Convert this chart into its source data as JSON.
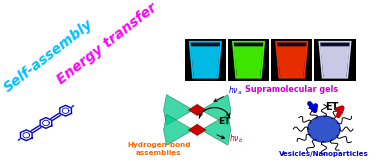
{
  "bg_color": "#ffffff",
  "self_assembly_text": "Self-assembly",
  "self_assembly_color": "#00BFFF",
  "energy_transfer_text": "Energy transfer",
  "energy_transfer_color": "#FF00FF",
  "supramolecular_text": "Supramolecular gels",
  "supramolecular_color": "#CC00CC",
  "hydrogen_bond_text": "Hydrogen-bond\nassemblies",
  "hydrogen_bond_color": "#FF6600",
  "vesicles_text": "Vesicles/Nanoparticles",
  "vesicles_color": "#0000CC",
  "ET_color": "#000000",
  "hva_color": "#0000CC",
  "hvb_color": "#CC0000",
  "gel_colors": [
    "#00CFFF",
    "#44FF00",
    "#FF3300",
    "#E0E0FF"
  ],
  "gel_bg": "#000000",
  "mol_color": "#0000CC",
  "green_wing_color": "#00CC88",
  "red_diamond_color": "#CC0000",
  "ves_circle_color": "#2244CC",
  "ves_red_color": "#CC0000",
  "ves_blue_color": "#0000CC"
}
